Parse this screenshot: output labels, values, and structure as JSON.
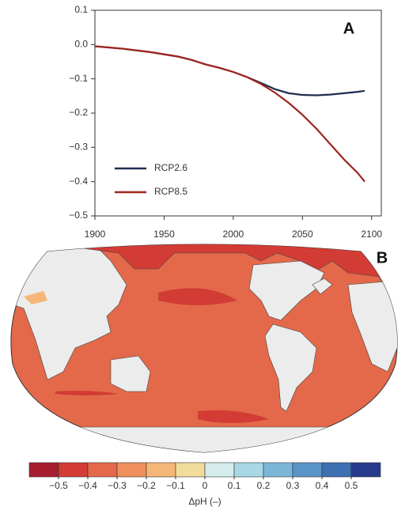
{
  "chart_data": [
    {
      "type": "line",
      "panel_label": "A",
      "x": [
        1900,
        1920,
        1940,
        1960,
        1970,
        1980,
        1990,
        2000,
        2010,
        2020,
        2030,
        2040,
        2050,
        2060,
        2070,
        2080,
        2090,
        2095
      ],
      "series": [
        {
          "name": "RCP2.6",
          "color": "#1f2d4f",
          "values": [
            -0.005,
            -0.012,
            -0.022,
            -0.035,
            -0.045,
            -0.058,
            -0.068,
            -0.08,
            -0.095,
            -0.112,
            -0.13,
            -0.142,
            -0.147,
            -0.148,
            -0.146,
            -0.142,
            -0.138,
            -0.135
          ]
        },
        {
          "name": "RCP8.5",
          "color": "#a0241e",
          "values": [
            -0.005,
            -0.012,
            -0.022,
            -0.035,
            -0.045,
            -0.058,
            -0.068,
            -0.08,
            -0.095,
            -0.115,
            -0.14,
            -0.17,
            -0.205,
            -0.245,
            -0.29,
            -0.335,
            -0.375,
            -0.4
          ]
        }
      ],
      "xlim": [
        1900,
        2107
      ],
      "xticks": [
        1900,
        1950,
        2000,
        2050,
        2100
      ],
      "ylim": [
        -0.5,
        0.1
      ],
      "yticks": [
        0.1,
        {
          "value": 0,
          "label": "0.0"
        },
        {
          "value": -0.1,
          "label": "−0.1"
        },
        {
          "value": -0.2,
          "label": "−0.2"
        },
        {
          "value": -0.3,
          "label": "−0.3"
        },
        {
          "value": -0.4,
          "label": "−0.4"
        },
        {
          "value": -0.5,
          "label": "−0.5"
        }
      ],
      "legend": "lower left"
    },
    {
      "type": "colorbar",
      "panel_label": "B",
      "label": "ΔpH (–)",
      "bounds": [
        -0.6,
        -0.5,
        -0.4,
        -0.3,
        -0.2,
        -0.1,
        0,
        0.1,
        0.2,
        0.3,
        0.4,
        0.5,
        0.6
      ],
      "colors": [
        "#a51d2e",
        "#d23c35",
        "#e3694a",
        "#ef8f5d",
        "#f5b777",
        "#f1dc9c",
        "#d4ecec",
        "#a8d8e6",
        "#7bb6d9",
        "#5a93c7",
        "#3d6fb2",
        "#253a8d"
      ],
      "xlim": [
        -0.6,
        0.6
      ],
      "xticks": [
        {
          "value": -0.5,
          "label": "−0.5"
        },
        {
          "value": -0.4,
          "label": "−0.4"
        },
        {
          "value": -0.3,
          "label": "−0.3"
        },
        {
          "value": -0.2,
          "label": "−0.2"
        },
        {
          "value": -0.1,
          "label": "−0.1"
        },
        0,
        0.1,
        0.2,
        0.3,
        0.4,
        0.5
      ]
    }
  ]
}
